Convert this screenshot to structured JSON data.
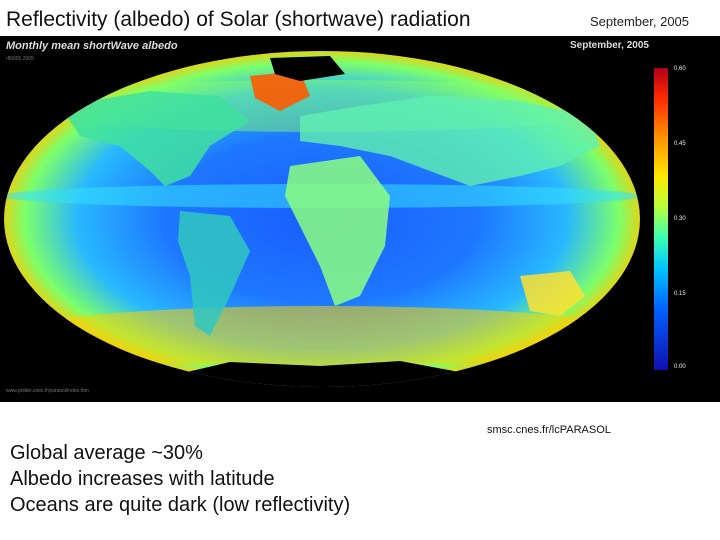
{
  "slide": {
    "title": "Reflectivity (albedo) of Solar (shortwave) radiation",
    "date": "September, 2005",
    "source": "smsc.cnes.fr/lcPARASOL"
  },
  "map": {
    "heading": "Monthly mean shortWave albedo",
    "date": "September, 2005",
    "credit_small": "rfl0005 2005",
    "footer_credit": "www.polder.cnes.fr/parasol/index.htm",
    "colorbar": {
      "ticks": [
        "0.60",
        "0.45",
        "0.30",
        "0.15",
        "0.00"
      ],
      "tick_values": [
        0.6,
        0.45,
        0.3,
        0.15,
        0.0
      ],
      "colors": [
        "#b0001a",
        "#ff2a00",
        "#ff9a00",
        "#ffe800",
        "#3cffb0",
        "#00c8ff",
        "#0060ff",
        "#1010b0"
      ]
    }
  },
  "bullets": [
    "Global average ~30%",
    "Albedo increases with latitude",
    "Oceans are quite dark (low reflectivity)"
  ]
}
